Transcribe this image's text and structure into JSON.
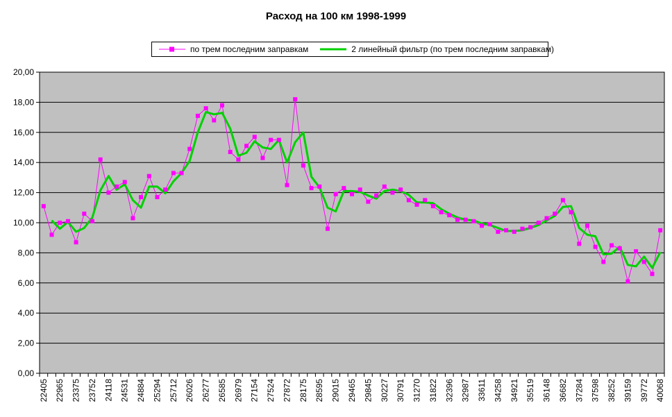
{
  "title": "Расход на 100 км 1998-1999",
  "legend": {
    "series1_label": "по трем последним заправкам",
    "series2_label": "2 линейный фильтр (по трем последним заправкам)"
  },
  "colors": {
    "series1": "#FF00FF",
    "series2": "#00D000",
    "plot_bg": "#C0C0C0",
    "grid": "#000000",
    "axis_text": "#000000",
    "background": "#FFFFFF",
    "legend_border": "#000000"
  },
  "chart_data": {
    "type": "line",
    "title": "Расход на 100 км 1998-1999",
    "xlabel": "",
    "ylabel": "",
    "ylim": [
      0,
      20
    ],
    "y_tick_step": 2,
    "y_tick_labels": [
      "20,00",
      "18,00",
      "16,00",
      "14,00",
      "12,00",
      "10,00",
      "8,00",
      "6,00",
      "4,00",
      "2,00",
      "0,00"
    ],
    "x_tick_labels": [
      "22405",
      "22965",
      "23375",
      "23752",
      "24118",
      "24531",
      "24884",
      "25294",
      "25712",
      "26026",
      "26277",
      "26585",
      "26979",
      "27154",
      "27524",
      "27872",
      "28175",
      "28595",
      "29015",
      "29465",
      "29845",
      "30227",
      "30791",
      "31270",
      "31822",
      "32396",
      "32987",
      "33611",
      "34258",
      "34921",
      "35519",
      "36148",
      "36682",
      "37284",
      "37598",
      "38252",
      "39159",
      "39772",
      "40068"
    ],
    "x_label_every_n_points": 2,
    "grid": "horizontal",
    "legend_position": "top",
    "plot_area_bg": "#C0C0C0",
    "series": [
      {
        "name": "по трем последним заправкам",
        "color": "#FF00FF",
        "marker": "square",
        "line_width": 1,
        "values": [
          11.1,
          9.2,
          10.0,
          10.1,
          8.7,
          10.6,
          10.1,
          14.2,
          12.0,
          12.4,
          12.7,
          10.3,
          11.7,
          13.1,
          11.7,
          12.2,
          13.3,
          13.3,
          14.9,
          17.1,
          17.6,
          16.8,
          17.8,
          14.7,
          14.2,
          15.1,
          15.7,
          14.3,
          15.5,
          15.5,
          12.5,
          18.2,
          13.8,
          12.3,
          12.4,
          9.6,
          11.9,
          12.3,
          11.9,
          12.2,
          11.4,
          11.8,
          12.4,
          12.0,
          12.2,
          11.5,
          11.2,
          11.5,
          11.1,
          10.7,
          10.5,
          10.2,
          10.2,
          10.1,
          9.8,
          9.9,
          9.4,
          9.5,
          9.4,
          9.6,
          9.7,
          10.0,
          10.3,
          10.6,
          11.5,
          10.7,
          8.6,
          9.8,
          8.4,
          7.4,
          8.5,
          8.3,
          6.1,
          8.1,
          7.4,
          6.6,
          9.5
        ]
      },
      {
        "name": "2 линейный фильтр (по трем последним заправкам)",
        "color": "#00D000",
        "marker": "none",
        "line_width": 3,
        "derivation": "2-period moving average of series 0",
        "values": [
          null,
          10.15,
          9.6,
          10.05,
          9.4,
          9.65,
          10.35,
          12.15,
          13.1,
          12.2,
          12.55,
          11.5,
          11.0,
          12.4,
          12.4,
          11.95,
          12.75,
          13.3,
          14.1,
          16.0,
          17.35,
          17.2,
          17.3,
          16.25,
          14.45,
          14.65,
          15.4,
          15.0,
          14.9,
          15.5,
          14.0,
          15.35,
          16.0,
          13.05,
          12.35,
          11.0,
          10.75,
          12.1,
          12.1,
          12.05,
          11.8,
          11.6,
          12.1,
          12.2,
          12.1,
          11.85,
          11.35,
          11.35,
          11.3,
          10.9,
          10.6,
          10.35,
          10.2,
          10.15,
          9.95,
          9.85,
          9.65,
          9.45,
          9.45,
          9.5,
          9.65,
          9.85,
          10.15,
          10.45,
          11.05,
          11.1,
          9.65,
          9.2,
          9.1,
          7.9,
          7.95,
          8.4,
          7.2,
          7.1,
          7.75,
          7.0,
          8.05
        ]
      }
    ]
  }
}
